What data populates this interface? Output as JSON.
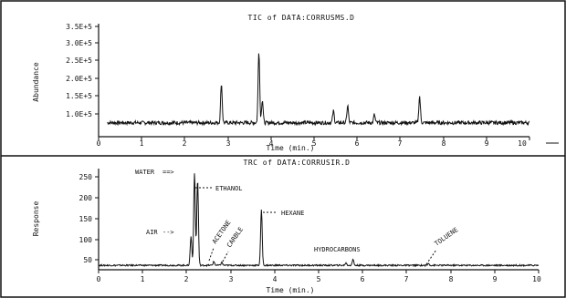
{
  "chart_data": [
    {
      "type": "line",
      "title": "TIC of DATA:CORRUSMS.D",
      "xlabel": "Time (min.)",
      "ylabel": "Abundance",
      "xlim": [
        0,
        10
      ],
      "ylim": [
        50000,
        350000
      ],
      "x_ticks": [
        "0",
        "1",
        "2",
        "3",
        "4",
        "5",
        "6",
        "7",
        "8",
        "9",
        "10"
      ],
      "y_ticks": [
        "1.0E+5",
        "1.5E+5",
        "2.0E+5",
        "2.5E+5",
        "3.0E+5",
        "3.5E+5"
      ],
      "grid": false,
      "baseline": 88000,
      "noise": 5000,
      "peaks": [
        {
          "x": 2.85,
          "y": 195000
        },
        {
          "x": 3.72,
          "y": 283000
        },
        {
          "x": 3.8,
          "y": 150000
        },
        {
          "x": 5.45,
          "y": 120000
        },
        {
          "x": 5.78,
          "y": 135000
        },
        {
          "x": 6.4,
          "y": 110000
        },
        {
          "x": 7.45,
          "y": 160000
        }
      ]
    },
    {
      "type": "line",
      "title": "TRC of DATA:CORRUSIR.D",
      "xlabel": "Time (min.)",
      "ylabel": "Response",
      "xlim": [
        0,
        10
      ],
      "ylim": [
        0,
        275
      ],
      "x_ticks": [
        "0",
        "1",
        "2",
        "3",
        "4",
        "5",
        "6",
        "7",
        "8",
        "9",
        "10"
      ],
      "y_ticks": [
        "50",
        "100",
        "150",
        "200",
        "250"
      ],
      "grid": false,
      "baseline": 12,
      "noise": 2,
      "peaks": [
        {
          "x": 2.1,
          "y": 90
        },
        {
          "x": 2.18,
          "y": 262
        },
        {
          "x": 2.25,
          "y": 245
        },
        {
          "x": 2.62,
          "y": 22
        },
        {
          "x": 2.8,
          "y": 20
        },
        {
          "x": 3.7,
          "y": 162
        },
        {
          "x": 5.62,
          "y": 18
        },
        {
          "x": 5.78,
          "y": 28
        },
        {
          "x": 7.5,
          "y": 17
        }
      ],
      "annotations": [
        {
          "text": "WATER"
        },
        {
          "text": "ETHANOL"
        },
        {
          "text": "AIR"
        },
        {
          "text": "ACETONE"
        },
        {
          "text": "CARBLE"
        },
        {
          "text": "HEXANE"
        },
        {
          "text": "HYDROCARBONS"
        },
        {
          "text": "TOLUENE"
        }
      ]
    }
  ]
}
